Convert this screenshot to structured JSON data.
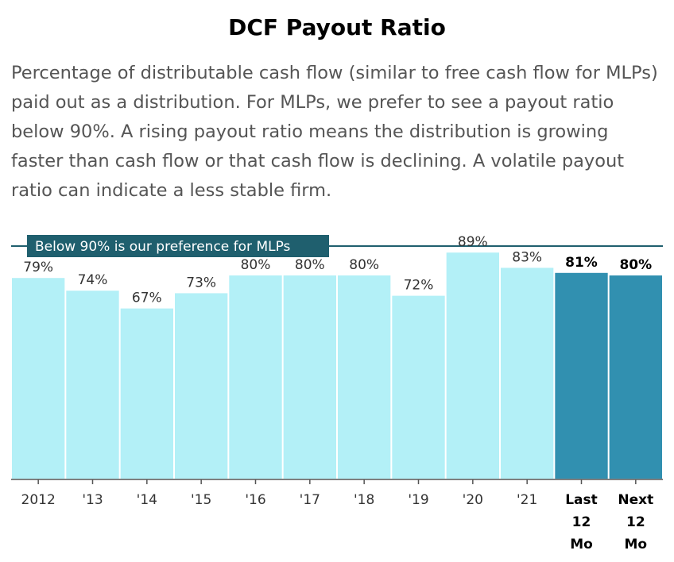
{
  "title": "DCF Payout Ratio",
  "description": "Percentage of distributable cash flow (similar to free cash flow for MLPs) paid out as a distribution. For MLPs, we prefer to see a payout ratio below 90%. A rising payout ratio means the distribution is growing faster than cash flow or that cash flow is declining. A volatile payout ratio can indicate a less stable firm.",
  "chart_data": {
    "type": "bar",
    "categories": [
      "2012",
      "'13",
      "'14",
      "'15",
      "'16",
      "'17",
      "'18",
      "'19",
      "'20",
      "'21",
      "Last 12 Mo",
      "Next 12 Mo"
    ],
    "tick_lines": [
      [
        "2012"
      ],
      [
        "'13"
      ],
      [
        "'14"
      ],
      [
        "'15"
      ],
      [
        "'16"
      ],
      [
        "'17"
      ],
      [
        "'18"
      ],
      [
        "'19"
      ],
      [
        "'20"
      ],
      [
        "'21"
      ],
      [
        "Last",
        "12",
        "Mo"
      ],
      [
        "Next",
        "12",
        "Mo"
      ]
    ],
    "values": [
      79,
      74,
      67,
      73,
      80,
      80,
      80,
      72,
      89,
      83,
      81,
      80
    ],
    "data_labels": [
      "79%",
      "74%",
      "67%",
      "73%",
      "80%",
      "80%",
      "80%",
      "72%",
      "89%",
      "83%",
      "81%",
      "80%"
    ],
    "highlighted": [
      false,
      false,
      false,
      false,
      false,
      false,
      false,
      false,
      false,
      false,
      true,
      true
    ],
    "reference_line": {
      "value": 90,
      "label": "Below 90% is our preference for MLPs"
    },
    "colors": {
      "bar": "#b3f0f7",
      "highlight": "#3190b0",
      "reference": "#1f5f6e",
      "axis": "#555555"
    },
    "ylim": [
      0,
      90
    ],
    "xlabel": "",
    "ylabel": "",
    "grid": false
  }
}
